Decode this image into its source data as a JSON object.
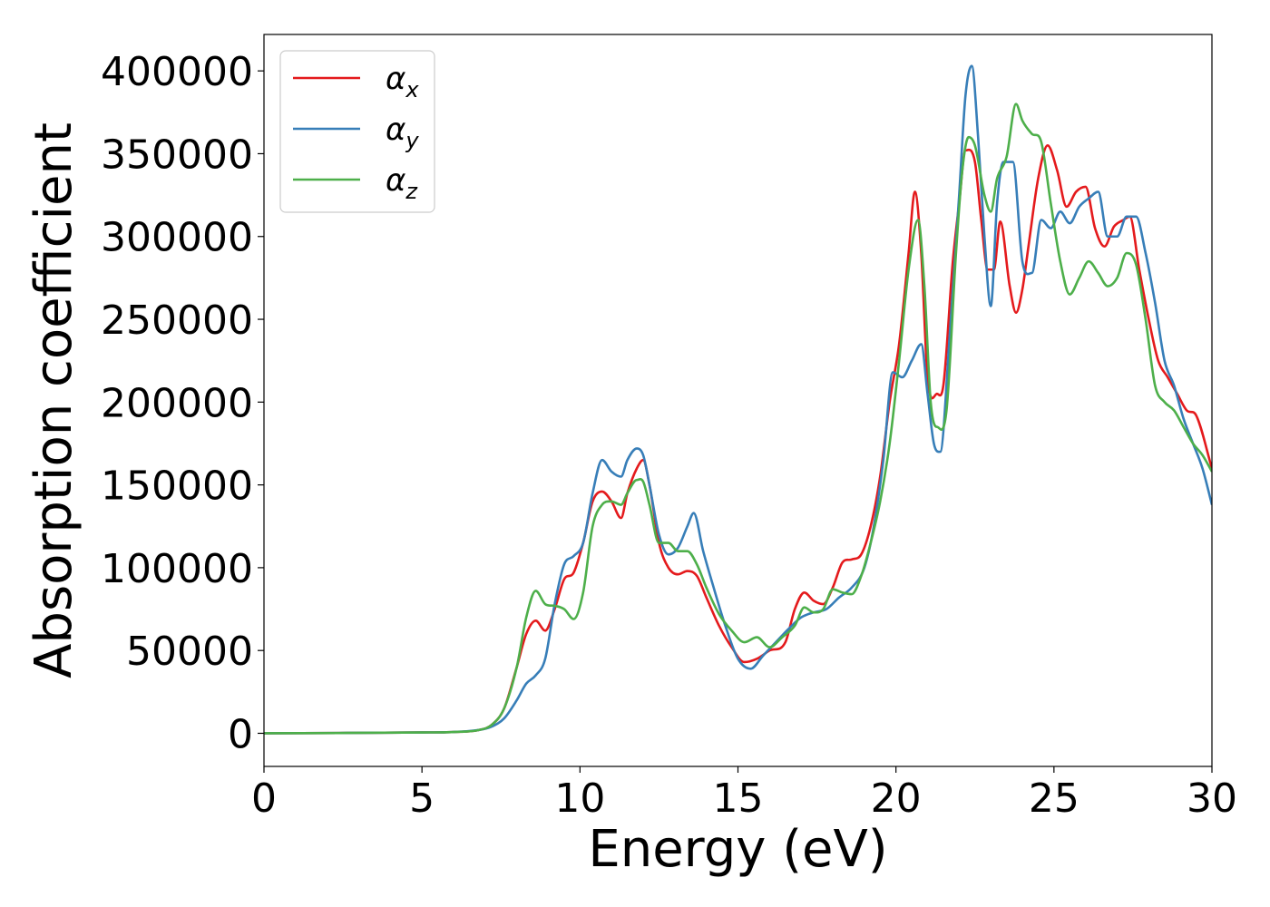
{
  "chart_data": {
    "type": "line",
    "xlabel": "Energy (eV)",
    "ylabel": "Absorption coefficient",
    "xlim": [
      0,
      30
    ],
    "ylim": [
      -20000,
      422000
    ],
    "xticks": [
      0,
      5,
      10,
      15,
      20,
      25,
      30
    ],
    "xtick_labels": [
      "0",
      "5",
      "10",
      "15",
      "20",
      "25",
      "30"
    ],
    "yticks": [
      0,
      50000,
      100000,
      150000,
      200000,
      250000,
      300000,
      350000,
      400000
    ],
    "ytick_labels": [
      "0",
      "50000",
      "100000",
      "150000",
      "200000",
      "250000",
      "300000",
      "350000",
      "400000"
    ],
    "grid": false,
    "legend_position": "top-left",
    "series": [
      {
        "name": "α",
        "name_sub": "x",
        "color": "#e41a1c",
        "x": [
          0,
          5,
          6,
          6.8,
          7.2,
          7.6,
          8.0,
          8.3,
          8.6,
          8.9,
          9.2,
          9.5,
          9.8,
          10.1,
          10.4,
          10.7,
          11.0,
          11.3,
          11.5,
          11.8,
          12.0,
          12.2,
          12.5,
          12.8,
          13.1,
          13.4,
          13.7,
          14.0,
          14.4,
          14.8,
          15.2,
          15.6,
          16.0,
          16.5,
          16.8,
          17.1,
          17.4,
          17.7,
          18.0,
          18.3,
          18.6,
          18.9,
          19.2,
          19.5,
          19.8,
          20.1,
          20.4,
          20.6,
          20.8,
          21.0,
          21.3,
          21.5,
          21.8,
          22.0,
          22.2,
          22.5,
          22.7,
          22.9,
          23.1,
          23.3,
          23.6,
          23.8,
          24.0,
          24.2,
          24.5,
          24.8,
          25.1,
          25.4,
          25.7,
          26.0,
          26.3,
          26.6,
          26.9,
          27.2,
          27.4,
          27.7,
          28.0,
          28.3,
          28.6,
          28.9,
          29.2,
          29.5,
          30.0
        ],
        "y": [
          0,
          500,
          800,
          2000,
          5000,
          15000,
          40000,
          60000,
          68000,
          62000,
          75000,
          93000,
          97000,
          115000,
          140000,
          146000,
          140000,
          130000,
          145000,
          160000,
          165000,
          150000,
          115000,
          100000,
          96000,
          98000,
          95000,
          82000,
          65000,
          52000,
          43000,
          45000,
          50000,
          55000,
          75000,
          85000,
          80000,
          78000,
          88000,
          103000,
          105000,
          108000,
          125000,
          155000,
          200000,
          235000,
          290000,
          327000,
          290000,
          215000,
          205000,
          210000,
          285000,
          320000,
          352000,
          345000,
          310000,
          280000,
          280000,
          309000,
          270000,
          254000,
          268000,
          295000,
          335000,
          355000,
          340000,
          318000,
          327000,
          330000,
          305000,
          294000,
          306000,
          310000,
          312000,
          280000,
          250000,
          225000,
          215000,
          205000,
          195000,
          192000,
          160000
        ]
      },
      {
        "name": "α",
        "name_sub": "y",
        "color": "#377eb8",
        "x": [
          0,
          5,
          6,
          6.8,
          7.2,
          7.6,
          8.0,
          8.3,
          8.6,
          8.9,
          9.2,
          9.5,
          9.8,
          10.1,
          10.4,
          10.7,
          11.0,
          11.3,
          11.5,
          11.8,
          12.0,
          12.2,
          12.5,
          12.8,
          13.1,
          13.4,
          13.6,
          13.9,
          14.2,
          14.6,
          15.0,
          15.4,
          15.8,
          16.2,
          16.6,
          17.0,
          17.4,
          17.8,
          18.2,
          18.6,
          19.0,
          19.3,
          19.6,
          19.9,
          20.2,
          20.5,
          20.8,
          21.0,
          21.2,
          21.4,
          21.7,
          22.0,
          22.2,
          22.4,
          22.6,
          22.8,
          23.0,
          23.2,
          23.4,
          23.7,
          24.0,
          24.3,
          24.6,
          24.9,
          25.2,
          25.5,
          25.8,
          26.1,
          26.4,
          26.7,
          27.0,
          27.3,
          27.6,
          27.9,
          28.2,
          28.5,
          28.8,
          29.1,
          29.4,
          29.7,
          30.0
        ],
        "y": [
          0,
          500,
          800,
          2000,
          4000,
          9000,
          20000,
          30000,
          35000,
          45000,
          78000,
          102000,
          107000,
          115000,
          145000,
          165000,
          158000,
          155000,
          165000,
          172000,
          168000,
          150000,
          120000,
          108000,
          112000,
          125000,
          133000,
          110000,
          90000,
          65000,
          45000,
          39000,
          47000,
          55000,
          63000,
          70000,
          73000,
          75000,
          82000,
          88000,
          100000,
          125000,
          165000,
          218000,
          215000,
          225000,
          235000,
          205000,
          175000,
          170000,
          240000,
          325000,
          385000,
          403000,
          360000,
          300000,
          258000,
          320000,
          345000,
          345000,
          285000,
          278000,
          310000,
          305000,
          315000,
          308000,
          318000,
          323000,
          327000,
          300000,
          300000,
          312000,
          312000,
          290000,
          260000,
          225000,
          210000,
          190000,
          175000,
          160000,
          138000
        ]
      },
      {
        "name": "α",
        "name_sub": "z",
        "color": "#4daf4a",
        "x": [
          0,
          5,
          6,
          6.8,
          7.2,
          7.6,
          8.0,
          8.3,
          8.6,
          8.9,
          9.2,
          9.5,
          9.8,
          10.1,
          10.4,
          10.7,
          11.0,
          11.3,
          11.5,
          11.8,
          12.0,
          12.2,
          12.5,
          12.8,
          13.1,
          13.4,
          13.7,
          14.0,
          14.4,
          14.8,
          15.2,
          15.6,
          16.0,
          16.4,
          16.8,
          17.1,
          17.4,
          17.7,
          18.0,
          18.3,
          18.6,
          18.9,
          19.2,
          19.5,
          19.8,
          20.1,
          20.4,
          20.7,
          20.9,
          21.1,
          21.3,
          21.6,
          21.9,
          22.1,
          22.3,
          22.5,
          22.8,
          23.0,
          23.2,
          23.5,
          23.8,
          24.0,
          24.3,
          24.6,
          24.9,
          25.2,
          25.5,
          25.8,
          26.1,
          26.4,
          26.7,
          27.0,
          27.3,
          27.6,
          27.9,
          28.2,
          28.5,
          28.8,
          29.1,
          29.4,
          29.7,
          30.0
        ],
        "y": [
          0,
          500,
          800,
          2000,
          5000,
          15000,
          40000,
          70000,
          86000,
          78000,
          77000,
          75000,
          69000,
          85000,
          125000,
          138000,
          140000,
          138000,
          145000,
          153000,
          152000,
          138000,
          115000,
          115000,
          110000,
          110000,
          102000,
          88000,
          72000,
          62000,
          55000,
          58000,
          52000,
          58000,
          65000,
          76000,
          73000,
          75000,
          87000,
          85000,
          84000,
          95000,
          115000,
          140000,
          175000,
          225000,
          280000,
          310000,
          270000,
          200000,
          185000,
          195000,
          290000,
          340000,
          360000,
          355000,
          325000,
          315000,
          335000,
          348000,
          380000,
          370000,
          362000,
          357000,
          320000,
          285000,
          265000,
          275000,
          285000,
          278000,
          270000,
          275000,
          290000,
          283000,
          250000,
          210000,
          200000,
          195000,
          185000,
          175000,
          168000,
          158000
        ]
      }
    ]
  }
}
